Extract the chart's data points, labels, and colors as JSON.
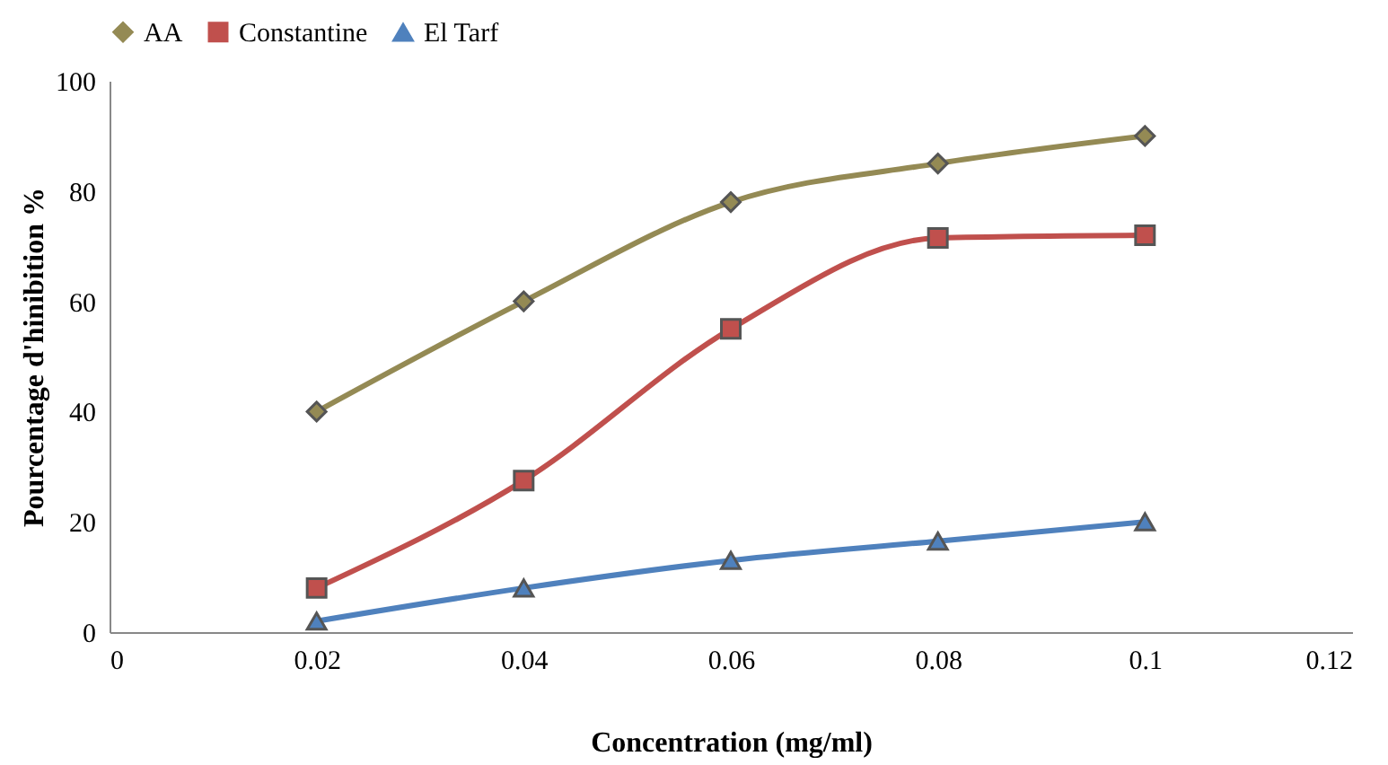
{
  "chart_data": {
    "type": "line",
    "xlabel": "Concentration (mg/ml)",
    "ylabel": "Pourcentage d'hinibition %",
    "x": [
      0.02,
      0.04,
      0.06,
      0.08,
      0.1
    ],
    "series": [
      {
        "name": "AA",
        "color": "#948a54",
        "marker": "diamond",
        "values": [
          40,
          60,
          78,
          85,
          90
        ]
      },
      {
        "name": "Constantine",
        "color": "#c0504d",
        "marker": "square",
        "values": [
          8,
          27.5,
          55,
          71.5,
          72
        ]
      },
      {
        "name": "El Tarf",
        "color": "#4f81bd",
        "marker": "triangle",
        "values": [
          2,
          8,
          13,
          16.5,
          20
        ]
      }
    ],
    "xlim": [
      0,
      0.12
    ],
    "xticks": [
      0,
      0.02,
      0.04,
      0.06,
      0.08,
      0.1,
      0.12
    ],
    "ylim": [
      0,
      100
    ],
    "yticks": [
      0,
      20,
      40,
      60,
      80,
      100
    ],
    "grid": false,
    "legend": "top",
    "line_style": "solid"
  }
}
